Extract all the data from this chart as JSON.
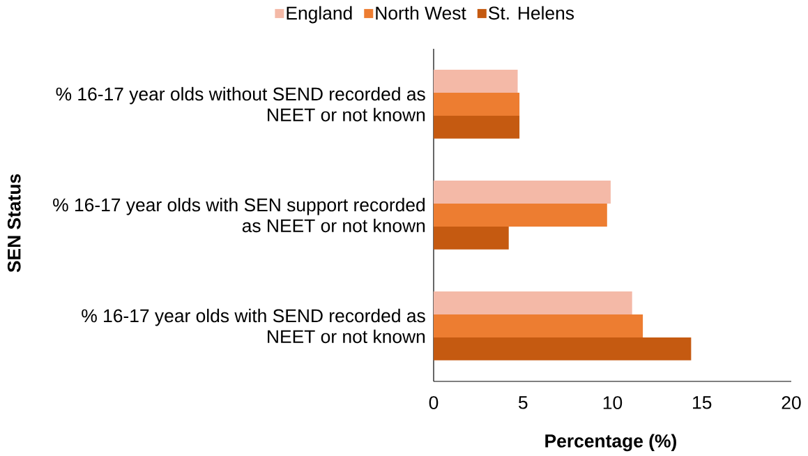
{
  "chart_data": {
    "type": "bar",
    "orientation": "horizontal",
    "ylabel": "SEN Status",
    "xlabel": "Percentage (%)",
    "categories": [
      "% 16-17 year olds without SEND recorded as NEET or not known",
      "% 16-17 year olds with SEN support recorded as NEET or not known",
      "% 16-17 year olds with SEND recorded as NEET or not known"
    ],
    "series": [
      {
        "name": "England",
        "color": "#f4b9a7",
        "values": [
          4.7,
          9.9,
          11.1
        ]
      },
      {
        "name": "North West",
        "color": "#ed7d31",
        "values": [
          4.8,
          9.7,
          11.7
        ]
      },
      {
        "name": "St. Helens",
        "color": "#c55a11",
        "values": [
          4.8,
          4.2,
          14.4
        ]
      }
    ],
    "xlim": [
      0,
      20
    ],
    "xticks": [
      0,
      5,
      10,
      15,
      20
    ],
    "legend": "top",
    "grid": false
  }
}
